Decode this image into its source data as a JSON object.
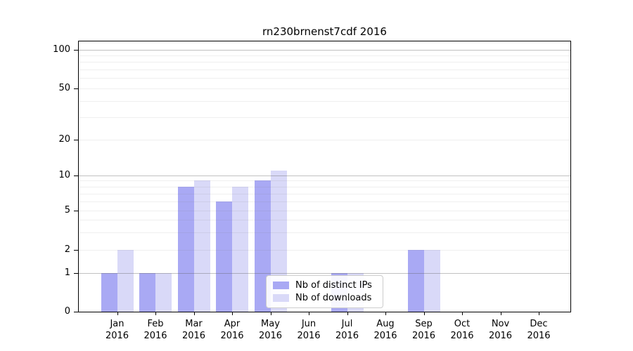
{
  "chart_data": {
    "type": "bar",
    "title": "rn230brnenst7cdf 2016",
    "year": "2016",
    "categories": [
      "Jan",
      "Feb",
      "Mar",
      "Apr",
      "May",
      "Jun",
      "Jul",
      "Aug",
      "Sep",
      "Oct",
      "Nov",
      "Dec"
    ],
    "series": [
      {
        "name": "Nb of distinct IPs",
        "color": "#a9a9f4",
        "values": [
          1,
          1,
          8,
          6,
          9,
          0,
          1,
          0,
          2,
          0,
          0,
          0
        ]
      },
      {
        "name": "Nb of downloads",
        "color": "#d9d9f8",
        "values": [
          2,
          1,
          9,
          8,
          11,
          0,
          1,
          0,
          2,
          0,
          0,
          0
        ]
      }
    ],
    "y_axis": {
      "tick_labels": [
        "0",
        "1",
        "2",
        "5",
        "10",
        "20",
        "50",
        "100"
      ],
      "tick_values": [
        0,
        1,
        2,
        5,
        10,
        20,
        50,
        100
      ],
      "scale_anchors": [
        [
          0,
          0
        ],
        [
          1,
          0.1426
        ],
        [
          2,
          0.2298
        ],
        [
          5,
          0.375
        ],
        [
          10,
          0.5043
        ],
        [
          20,
          0.6362
        ],
        [
          50,
          0.8269
        ],
        [
          100,
          0.97
        ]
      ],
      "grid_major": [
        1,
        10,
        100
      ],
      "grid_minor": [
        2,
        3,
        4,
        5,
        6,
        7,
        8,
        9,
        20,
        30,
        40,
        50,
        60,
        70,
        80,
        90
      ]
    },
    "legend": {
      "items": [
        "Nb of distinct IPs",
        "Nb of downloads"
      ],
      "position": "lower center-right"
    },
    "grid": true
  },
  "colors": {
    "background": "#ffffff",
    "series_distinct_ips": "#a9a9f4",
    "series_downloads": "#d9d9f8",
    "axis": "#000000",
    "legend_border": "#cccccc"
  }
}
